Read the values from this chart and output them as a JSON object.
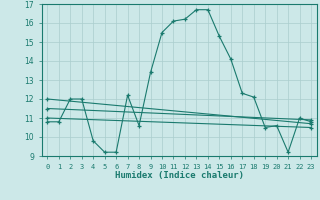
{
  "xlabel": "Humidex (Indice chaleur)",
  "background_color": "#cce8e8",
  "line_color": "#1a7a6e",
  "grid_color": "#aacece",
  "xlim": [
    -0.5,
    23.5
  ],
  "ylim": [
    9,
    17
  ],
  "xticks": [
    0,
    1,
    2,
    3,
    4,
    5,
    6,
    7,
    8,
    9,
    10,
    11,
    12,
    13,
    14,
    15,
    16,
    17,
    18,
    19,
    20,
    21,
    22,
    23
  ],
  "yticks": [
    9,
    10,
    11,
    12,
    13,
    14,
    15,
    16,
    17
  ],
  "series": [
    {
      "x": [
        0,
        1,
        2,
        3,
        4,
        5,
        6,
        7,
        8,
        9,
        10,
        11,
        12,
        13,
        14,
        15,
        16,
        17,
        18,
        19,
        20,
        21,
        22,
        23
      ],
      "y": [
        10.8,
        10.8,
        12.0,
        12.0,
        9.8,
        9.2,
        9.2,
        12.2,
        10.6,
        13.4,
        15.5,
        16.1,
        16.2,
        16.7,
        16.7,
        15.3,
        14.1,
        12.3,
        12.1,
        10.5,
        10.6,
        9.2,
        11.0,
        10.8
      ]
    },
    {
      "x": [
        0,
        23
      ],
      "y": [
        12.0,
        10.7
      ]
    },
    {
      "x": [
        0,
        23
      ],
      "y": [
        11.5,
        10.9
      ]
    },
    {
      "x": [
        0,
        23
      ],
      "y": [
        11.0,
        10.5
      ]
    }
  ]
}
